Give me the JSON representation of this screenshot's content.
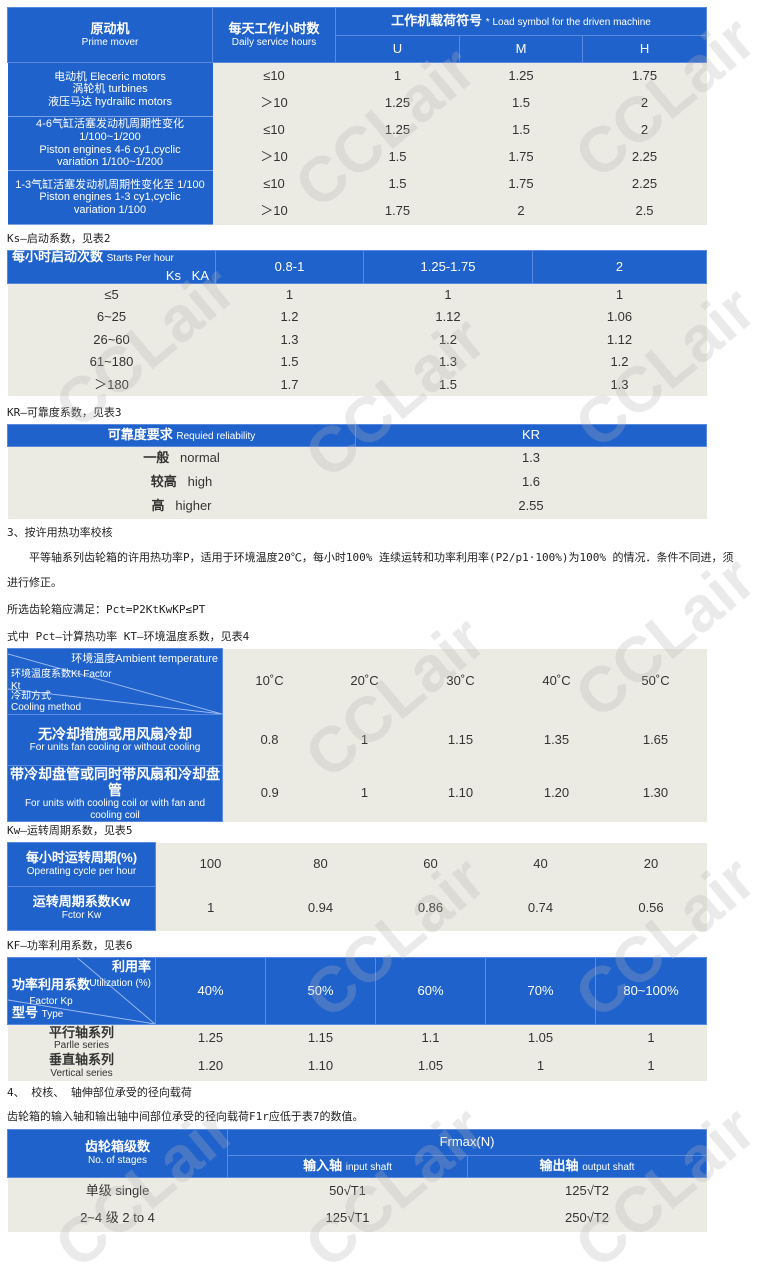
{
  "t1": {
    "prime_cn": "原动机",
    "prime_en": "Prime mover",
    "hours_cn": "每天工作小时数",
    "hours_en": "Daily service hours",
    "load_cn": "工作机载荷符号",
    "load_en": "* Load symbol for the driven machine",
    "cols": [
      "U",
      "M",
      "H"
    ],
    "groups": [
      {
        "l1": "电动机 Eleceric motors",
        "l2": "涡轮机 turbines",
        "l3": "液压马达 hydrailic motors"
      },
      {
        "l1": "4-6气缸活塞发动机周期性变化 1/100~1/200",
        "l2": "Piston engines 4-6 cy1,cyclic",
        "l3": "variation 1/100~1/200"
      },
      {
        "l1": "1-3气缸活塞发动机周期性变化至 1/100",
        "l2": "Piston engines 1-3 cy1,cyclic",
        "l3": "variation 1/100"
      }
    ],
    "rows": [
      [
        "≤10",
        "1",
        "1.25",
        "1.75"
      ],
      [
        "＞10",
        "1.25",
        "1.5",
        "2"
      ],
      [
        "≤10",
        "1.25",
        "1.5",
        "2"
      ],
      [
        "＞10",
        "1.5",
        "1.75",
        "2.25"
      ],
      [
        "≤10",
        "1.5",
        "1.75",
        "2.25"
      ],
      [
        "＞10",
        "1.75",
        "2",
        "2.5"
      ]
    ]
  },
  "ks_text": "Ks—启动系数，见表2",
  "t2": {
    "corner_ks": "Ks",
    "corner_ka": "KA",
    "row_head": "每小时启动次数",
    "row_head_en": "Starts Per hour",
    "cols": [
      "0.8-1",
      "1.25-1.75",
      "2"
    ],
    "rows": [
      [
        "≤5",
        "1",
        "1",
        "1"
      ],
      [
        "6~25",
        "1.2",
        "1.12",
        "1.06"
      ],
      [
        "26~60",
        "1.3",
        "1.2",
        "1.12"
      ],
      [
        "61~180",
        "1.5",
        "1.3",
        "1.2"
      ],
      [
        "＞180",
        "1.7",
        "1.5",
        "1.3"
      ]
    ]
  },
  "kr_text": "KR—可靠度系数，见表3",
  "t3": {
    "h_cn": "可靠度要求",
    "h_en": "Requied reliability",
    "h_kr": "KR",
    "rows": [
      [
        "一般",
        "normal",
        "1.3"
      ],
      [
        "较高",
        "high",
        "1.6"
      ],
      [
        "高",
        "higher",
        "2.55"
      ]
    ]
  },
  "sec3": "3、按许用热功率校核",
  "para": "平等轴系列齿轮箱的许用热功率P，适用于环境温度20℃，每小时100% 连续运转和功率利用率(P2/p1·100%)为100% 的情况．条件不同进，须",
  "para2": "进行修正。",
  "formula": "所选齿轮箱应满足：Pct=P2KtKwKP≤PT",
  "where": "式中 Pct—计算热功率 KT—环境温度系数，见表4",
  "t4": {
    "amb": "环境温度Ambient temperature",
    "factor": "环境温度系数Kt Factor Kt",
    "cool_cn": "冷却方式",
    "cool_en": "Cooling method",
    "cols": [
      "10˚C",
      "20˚C",
      "30˚C",
      "40˚C",
      "50˚C"
    ],
    "rows": [
      {
        "cn": "无冷却措施或用风扇冷却",
        "en": "For units fan cooling or without cooling",
        "v": [
          "0.8",
          "1",
          "1.15",
          "1.35",
          "1.65"
        ]
      },
      {
        "cn": "带冷却盘管或同时带风扇和冷却盘管",
        "en": "For units with cooling coil or with fan and cooling coil",
        "v": [
          "0.9",
          "1",
          "1.10",
          "1.20",
          "1.30"
        ]
      }
    ]
  },
  "kw_text": "Kw—运转周期系数，见表5",
  "t5": {
    "r1_cn": "每小时运转周期(%)",
    "r1_en": "Operating cycle per hour",
    "r2_cn": "运转周期系数Kw",
    "r2_en": "Fctor Kw",
    "r1": [
      "100",
      "80",
      "60",
      "40",
      "20"
    ],
    "r2": [
      "1",
      "0.94",
      "0.86",
      "0.74",
      "0.56"
    ]
  },
  "kf_text": "KF—功率利用系数，见表6",
  "t6": {
    "util_cn": "利用率",
    "util_en": "Utilization (%)",
    "factor_cn": "功率利用系数",
    "factor_en": "Factor Kp",
    "type_cn": "型号",
    "type_en": "Type",
    "cols": [
      "40%",
      "50%",
      "60%",
      "70%",
      "80~100%"
    ],
    "rows": [
      {
        "cn": "平行轴系列",
        "en": "Parlle series",
        "v": [
          "1.25",
          "1.15",
          "1.1",
          "1.05",
          "1"
        ]
      },
      {
        "cn": "垂直轴系列",
        "en": "Vertical series",
        "v": [
          "1.20",
          "1.10",
          "1.05",
          "1",
          "1"
        ]
      }
    ]
  },
  "sec4": "4、 校核、 轴伸部位承受的径向载荷",
  "sec4_text": "齿轮箱的输入轴和输出轴中间部位承受的径向载荷F1r应低于表7的数值。",
  "t7": {
    "stages_cn": "齿轮箱级数",
    "stages_en": "No. of stages",
    "frmax": "Frmax(N)",
    "in_cn": "输入轴",
    "in_en": "input shaft",
    "out_cn": "输出轴",
    "out_en": "output shaft",
    "rows": [
      {
        "cn": "单级",
        "en": "single",
        "in": "50√T1",
        "out": "125√T2"
      },
      {
        "cn": "2~4 级",
        "en": "2 to 4",
        "in": "125√T1",
        "out": "250√T2"
      }
    ]
  },
  "watermark": "CCLair"
}
